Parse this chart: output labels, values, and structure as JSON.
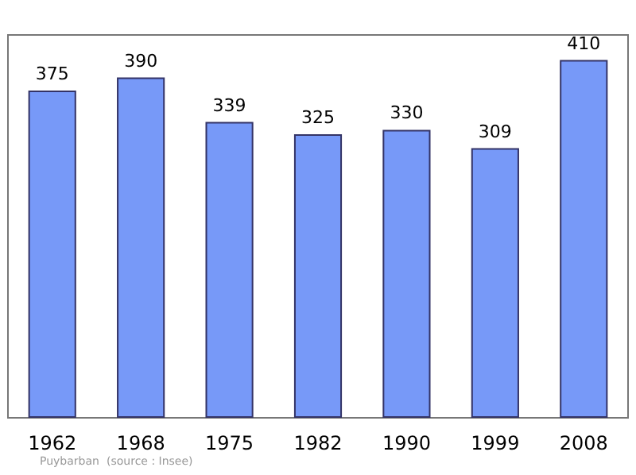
{
  "chart_data": {
    "type": "bar",
    "categories": [
      "1962",
      "1968",
      "1975",
      "1982",
      "1990",
      "1999",
      "2008"
    ],
    "values": [
      375,
      390,
      339,
      325,
      330,
      309,
      410
    ],
    "color": "#7799f8",
    "data_labels": true,
    "annotations": [
      "Puybarban",
      "(source : Insee)"
    ]
  }
}
